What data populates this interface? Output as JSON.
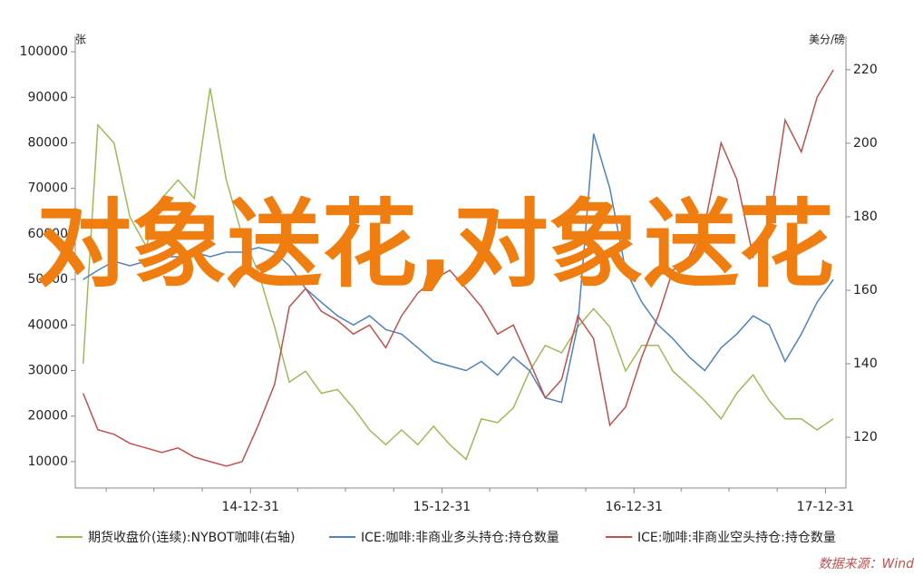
{
  "chart_data": {
    "type": "line",
    "watermark": "对象送花,对象送花",
    "y_unit": "张",
    "y2_unit": "美分/磅",
    "source": "数据来源：Wind",
    "x": [
      "14-02-15",
      "14-03-15",
      "14-04-15",
      "14-05-15",
      "14-06-15",
      "14-07-15",
      "14-08-15",
      "14-09-15",
      "14-10-15",
      "14-11-15",
      "14-12-15",
      "15-01-15",
      "15-02-15",
      "15-03-15",
      "15-04-15",
      "15-05-15",
      "15-06-15",
      "15-07-15",
      "15-08-15",
      "15-09-15",
      "15-10-15",
      "15-11-15",
      "15-12-15",
      "16-01-15",
      "16-02-15",
      "16-03-15",
      "16-04-15",
      "16-05-15",
      "16-06-15",
      "16-07-15",
      "16-08-15",
      "16-09-15",
      "16-10-15",
      "16-11-15",
      "16-12-15",
      "17-01-15",
      "17-02-15",
      "17-03-15",
      "17-04-15",
      "17-05-15",
      "17-06-15",
      "17-07-15",
      "17-08-15",
      "17-09-15",
      "17-10-15",
      "17-11-15",
      "17-12-15",
      "18-01-15"
    ],
    "xlim": [
      "14-01-31",
      "18-02-08"
    ],
    "xticks": [
      "14-12-31",
      "15-12-31",
      "16-12-31",
      "17-12-31"
    ],
    "xminorticks": [
      "14-03-31",
      "14-06-30",
      "14-09-30",
      "15-03-31",
      "15-06-30",
      "15-09-30",
      "16-03-31",
      "16-06-30",
      "16-09-30",
      "17-03-31",
      "17-06-30",
      "17-09-30"
    ],
    "ylim": [
      4200,
      103400
    ],
    "yticks": [
      10000,
      20000,
      30000,
      40000,
      50000,
      60000,
      70000,
      80000,
      90000,
      100000
    ],
    "y2lim": [
      106.2,
      229.1
    ],
    "y2ticks": [
      120,
      140,
      160,
      180,
      200,
      220
    ],
    "series": [
      {
        "name": "期货收盘价(连续):NYBOT咖啡(右轴)",
        "color": "#9bbb59",
        "axis": "y2",
        "values": [
          140,
          205,
          200,
          180,
          172,
          185,
          190,
          185,
          215,
          190,
          175,
          165,
          150,
          135,
          138,
          132,
          133,
          128,
          122,
          118,
          122,
          118,
          123,
          118,
          114,
          125,
          124,
          128,
          138,
          145,
          143,
          150,
          155,
          150,
          138,
          145,
          145,
          138,
          134,
          130,
          125,
          132,
          137,
          130,
          125,
          125,
          122,
          125
        ]
      },
      {
        "name": "ICE:咖啡:非商业多头持仓:持仓数量",
        "color": "#4f81bd",
        "values": [
          50000,
          52000,
          54000,
          53000,
          54000,
          55000,
          55000,
          56000,
          55000,
          56000,
          56000,
          57000,
          56000,
          53000,
          48000,
          45000,
          42000,
          40000,
          42000,
          39000,
          38000,
          35000,
          32000,
          31000,
          30000,
          32000,
          29000,
          33000,
          30000,
          24000,
          23000,
          40000,
          82000,
          70000,
          52000,
          45000,
          40000,
          37000,
          33000,
          30000,
          35000,
          38000,
          42000,
          40000,
          32000,
          38000,
          45000,
          50000
        ]
      },
      {
        "name": "ICE:咖啡:非商业空头持仓:持仓数量",
        "color": "#c0504d",
        "values": [
          25000,
          17000,
          16000,
          14000,
          13000,
          12000,
          13000,
          11000,
          10000,
          9000,
          10000,
          18000,
          27000,
          44000,
          48000,
          43000,
          41000,
          38000,
          40000,
          35000,
          42000,
          47000,
          50000,
          52000,
          48000,
          44000,
          38000,
          40000,
          32000,
          24000,
          28000,
          42000,
          37000,
          18000,
          22000,
          33000,
          42000,
          52000,
          55000,
          62000,
          80000,
          72000,
          55000,
          62000,
          85000,
          78000,
          90000,
          96000
        ]
      }
    ]
  }
}
